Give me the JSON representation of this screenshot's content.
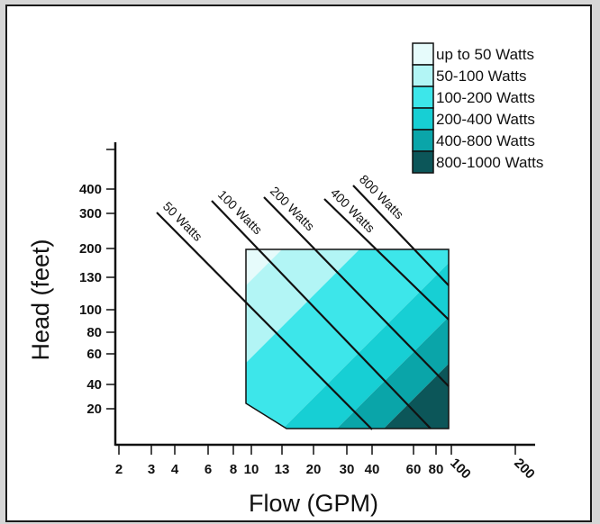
{
  "chart_data": {
    "type": "area",
    "title": "",
    "xlabel": "Flow (GPM)",
    "ylabel": "Head (feet)",
    "xscale": "log",
    "yscale": "log",
    "xlim": [
      2,
      200
    ],
    "ylim": [
      20,
      400
    ],
    "x_ticks": [
      2,
      3,
      4,
      6,
      8,
      10,
      13,
      20,
      30,
      40,
      60,
      80,
      100,
      200
    ],
    "y_ticks": [
      20,
      40,
      60,
      80,
      100,
      130,
      200,
      300,
      400
    ],
    "legend_position": "top-right",
    "legend": [
      {
        "label": "up to 50 Watts",
        "color": "#e6fbfb"
      },
      {
        "label": "50-100 Watts",
        "color": "#b2f5f5"
      },
      {
        "label": "100-200 Watts",
        "color": "#3de6ea"
      },
      {
        "label": "200-400 Watts",
        "color": "#17cfd4"
      },
      {
        "label": "400-800 Watts",
        "color": "#0aa5a9"
      },
      {
        "label": "800-1000 Watts",
        "color": "#0c5659"
      }
    ],
    "power_lines": [
      {
        "label": "50 Watts"
      },
      {
        "label": "100 Watts"
      },
      {
        "label": "200 Watts"
      },
      {
        "label": "400 Watts"
      },
      {
        "label": "800 Watts"
      }
    ]
  }
}
